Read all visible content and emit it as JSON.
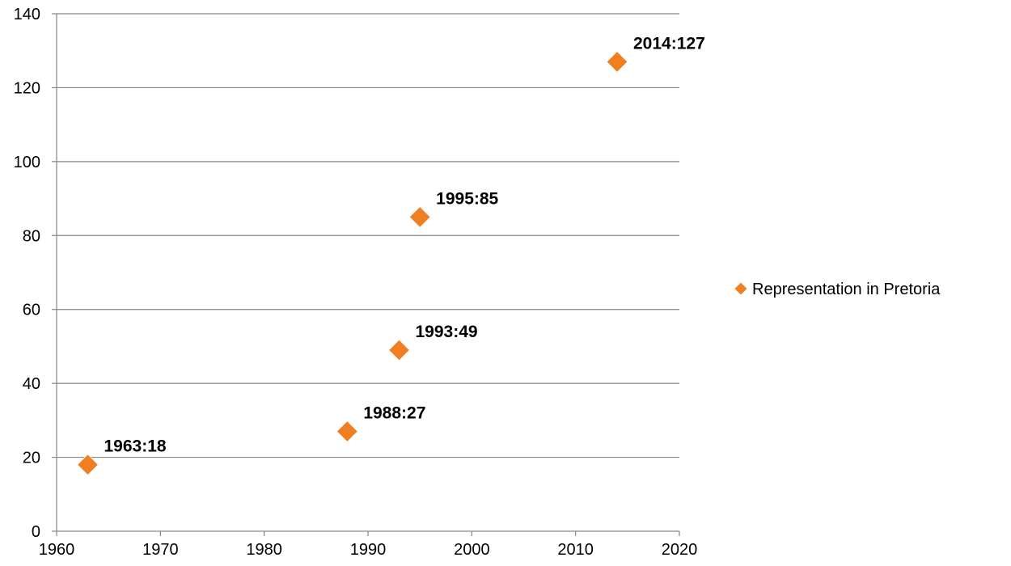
{
  "chart_data": {
    "type": "scatter",
    "series": [
      {
        "name": "Representation in Pretoria",
        "points": [
          {
            "x": 1963,
            "y": 18,
            "label": "1963:18"
          },
          {
            "x": 1988,
            "y": 27,
            "label": "1988:27"
          },
          {
            "x": 1993,
            "y": 49,
            "label": "1993:49"
          },
          {
            "x": 1995,
            "y": 85,
            "label": "1995:85"
          },
          {
            "x": 2014,
            "y": 127,
            "label": "2014:127"
          }
        ]
      }
    ],
    "xlim": [
      1960,
      2020
    ],
    "ylim": [
      0,
      140
    ],
    "x_ticks": [
      "1960",
      "1970",
      "1980",
      "1990",
      "2000",
      "2010",
      "2020"
    ],
    "y_ticks": [
      "0",
      "20",
      "40",
      "60",
      "80",
      "100",
      "120",
      "140"
    ],
    "grid": "horizontal",
    "legend_position": "right",
    "marker_color": "#F07F22",
    "marker_shape": "diamond"
  }
}
